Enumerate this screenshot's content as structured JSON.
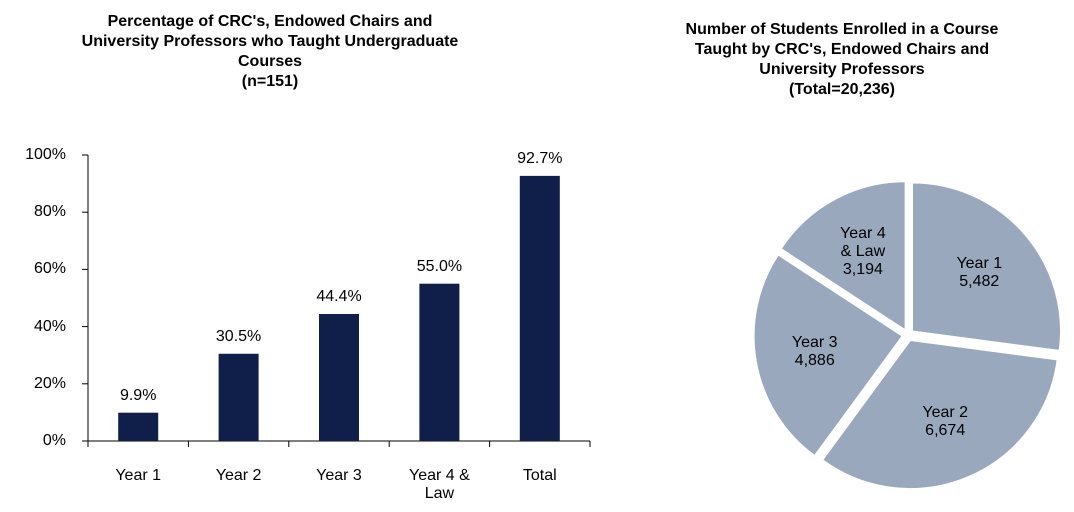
{
  "chart_data": [
    {
      "type": "bar",
      "title": "Percentage of CRC's, Endowed Chairs and University Professors who Taught Undergraduate Courses",
      "subtitle": "(n=151)",
      "categories": [
        "Year 1",
        "Year 2",
        "Year 3",
        "Year 4 & Law",
        "Total"
      ],
      "values": [
        9.9,
        30.5,
        44.4,
        55.0,
        92.7
      ],
      "value_labels": [
        "9.9%",
        "30.5%",
        "44.4%",
        "55.0%",
        "92.7%"
      ],
      "color": "#0f1f4a",
      "ylim": [
        0,
        100
      ],
      "yticks": [
        {
          "value": 0,
          "label": "0%"
        },
        {
          "value": 20,
          "label": "20%"
        },
        {
          "value": 40,
          "label": "40%"
        },
        {
          "value": 60,
          "label": "60%"
        },
        {
          "value": 80,
          "label": "80%"
        },
        {
          "value": 100,
          "label": "100%"
        }
      ]
    },
    {
      "type": "pie",
      "title": "Number of Students Enrolled in a Course Taught by CRC's, Endowed Chairs and University Professors",
      "subtitle": "(Total=20,236)",
      "categories": [
        "Year 1",
        "Year 2",
        "Year 3",
        "Year 4 & Law"
      ],
      "values": [
        5482,
        6674,
        4886,
        3194
      ],
      "value_labels": [
        "5,482",
        "6,674",
        "4,886",
        "3,194"
      ],
      "color": "#9aa8bd"
    }
  ]
}
